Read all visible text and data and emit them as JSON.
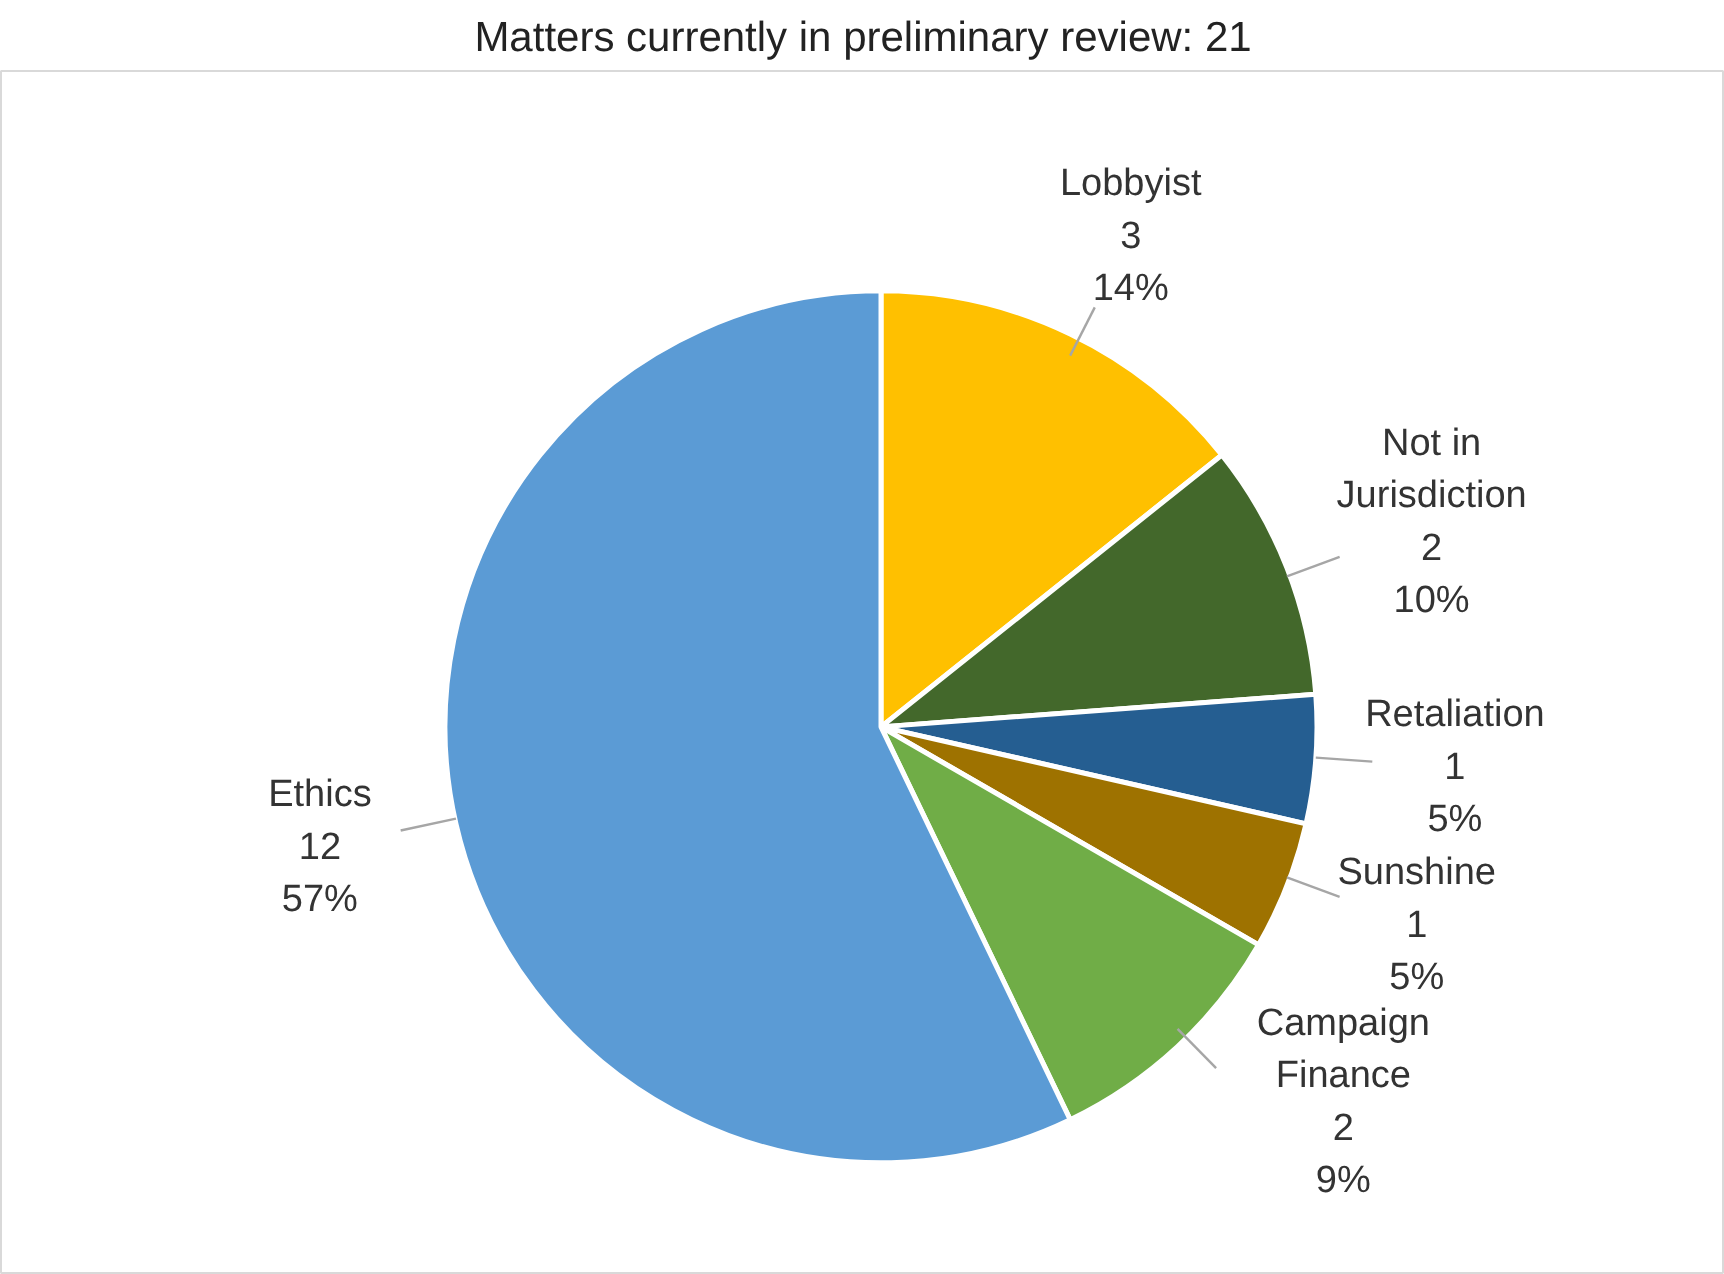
{
  "chart_data": {
    "type": "pie",
    "title": "Matters currently in preliminary review: 21",
    "categories": [
      "Lobbyist",
      "Not in Jurisdiction",
      "Retaliation",
      "Sunshine",
      "Campaign Finance",
      "Ethics"
    ],
    "values": [
      3,
      2,
      1,
      1,
      2,
      12
    ],
    "colors": [
      "#ffc000",
      "#43682b",
      "#255e91",
      "#9e7200",
      "#70ad47",
      "#5b9bd5"
    ],
    "value_labels": [
      "3\n14%",
      "2\n10%",
      "1\n5%",
      "1\n5%",
      "2\n9%",
      "12\n57%"
    ]
  }
}
